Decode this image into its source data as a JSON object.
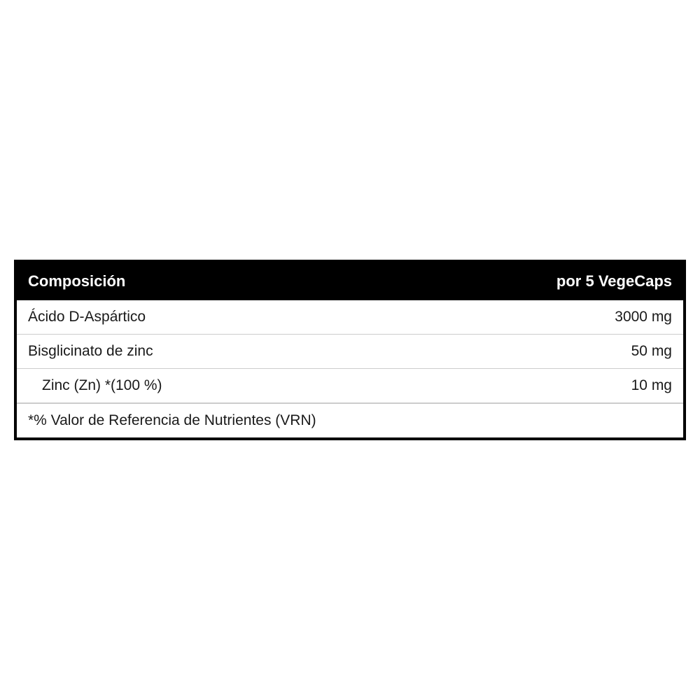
{
  "table": {
    "header": {
      "left": "Composición",
      "right": "por 5 VegeCaps"
    },
    "rows": [
      {
        "name": "Ácido D-Aspártico",
        "value": "3000 mg",
        "indented": false
      },
      {
        "name": "Bisglicinato de zinc",
        "value": "50 mg",
        "indented": false
      },
      {
        "name": "Zinc (Zn) *(100 %)",
        "value": "10 mg",
        "indented": true
      }
    ],
    "footer": "*% Valor de Referencia de Nutrientes (VRN)"
  },
  "colors": {
    "header_bg": "#000000",
    "header_text": "#ffffff",
    "border": "#000000",
    "row_border": "#cccccc",
    "text": "#1a1a1a",
    "background": "#ffffff"
  },
  "typography": {
    "header_fontsize": 22,
    "header_weight": "bold",
    "body_fontsize": 21,
    "font_family": "Arial, Helvetica, sans-serif"
  }
}
